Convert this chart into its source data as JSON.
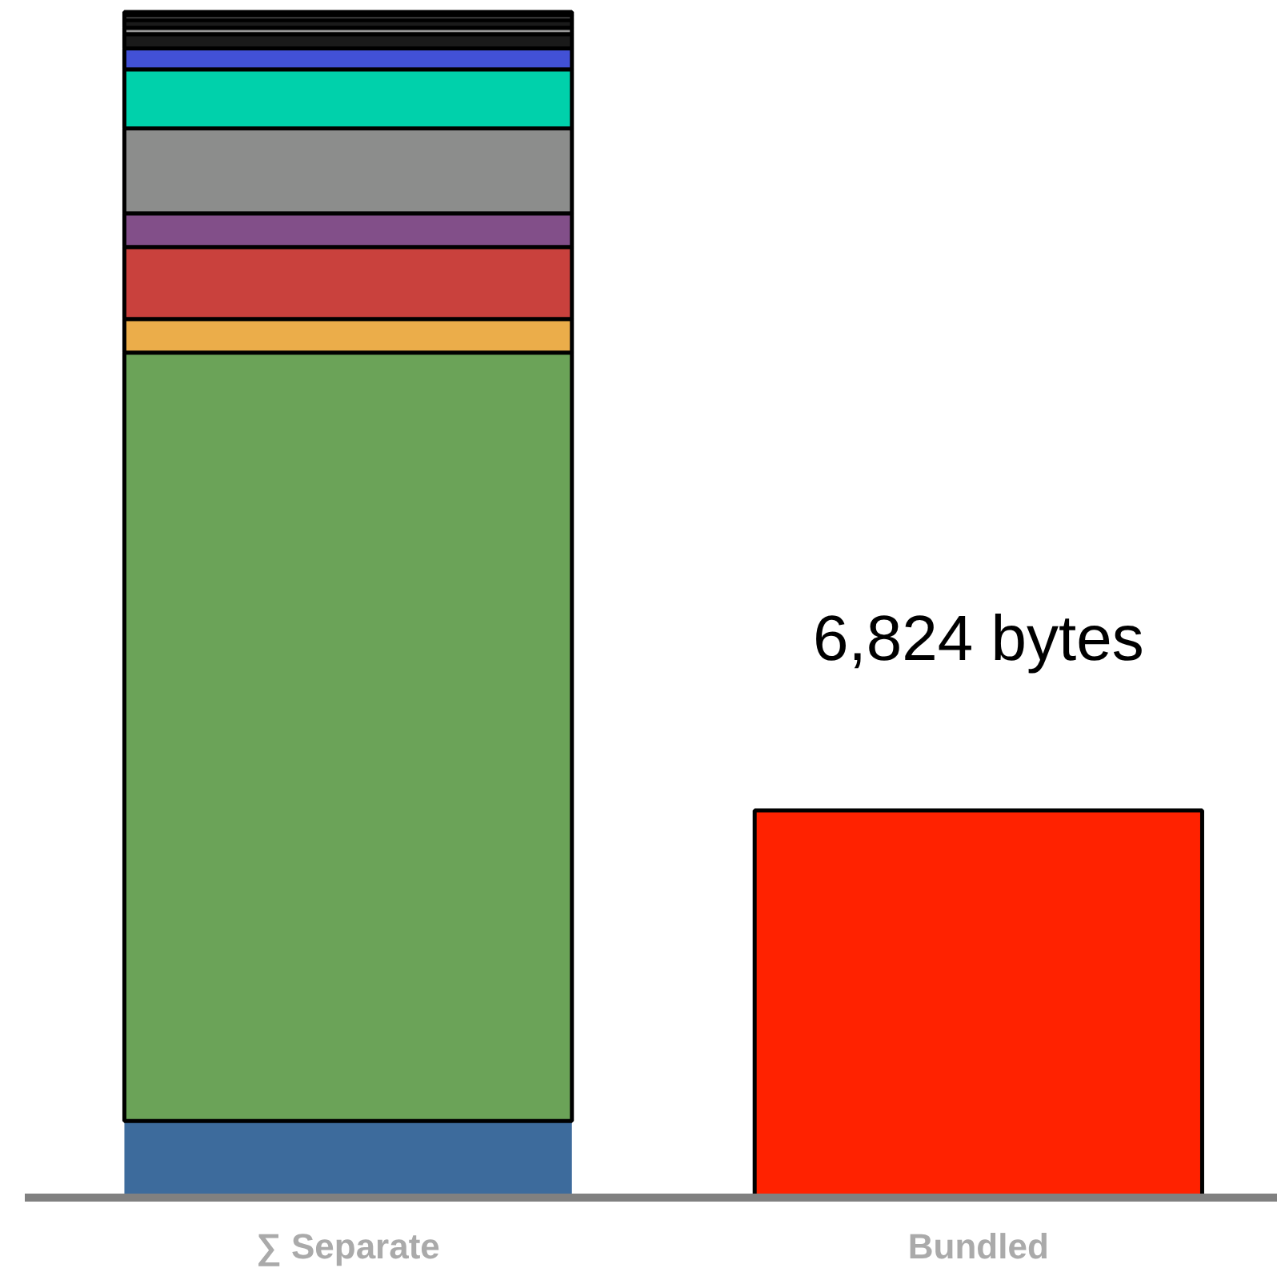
{
  "chart_data": {
    "type": "bar",
    "stacked": true,
    "categories": [
      "∑ Separate",
      "Bundled"
    ],
    "tick_labels": "x",
    "grid": false,
    "series": [
      {
        "color": "#3d6b9c",
        "values": [
          1350,
          null
        ]
      },
      {
        "color": "#6ba358",
        "values": [
          13540,
          null
        ]
      },
      {
        "color": "#ebad4a",
        "values": [
          590,
          null
        ]
      },
      {
        "color": "#c9413d",
        "values": [
          1270,
          null
        ]
      },
      {
        "color": "#824f89",
        "values": [
          590,
          null
        ]
      },
      {
        "color": "#8c8d8c",
        "values": [
          1500,
          null
        ]
      },
      {
        "color": "#00d1ab",
        "values": [
          1040,
          null
        ]
      },
      {
        "color": "#4251d6",
        "values": [
          370,
          null
        ]
      },
      {
        "color": "#1a1a1a",
        "values": [
          250,
          null
        ]
      },
      {
        "color": "#999999",
        "values": [
          110,
          null
        ]
      },
      {
        "color": "#1a1a1a",
        "values": [
          140,
          null
        ]
      },
      {
        "color": "#999999",
        "values": [
          85,
          null
        ]
      },
      {
        "color": "#1a1a1a",
        "values": [
          55,
          null
        ]
      },
      {
        "color": "#ff2200",
        "values": [
          null,
          6824
        ],
        "value_labels": [
          null,
          "6,824 bytes"
        ]
      }
    ]
  }
}
